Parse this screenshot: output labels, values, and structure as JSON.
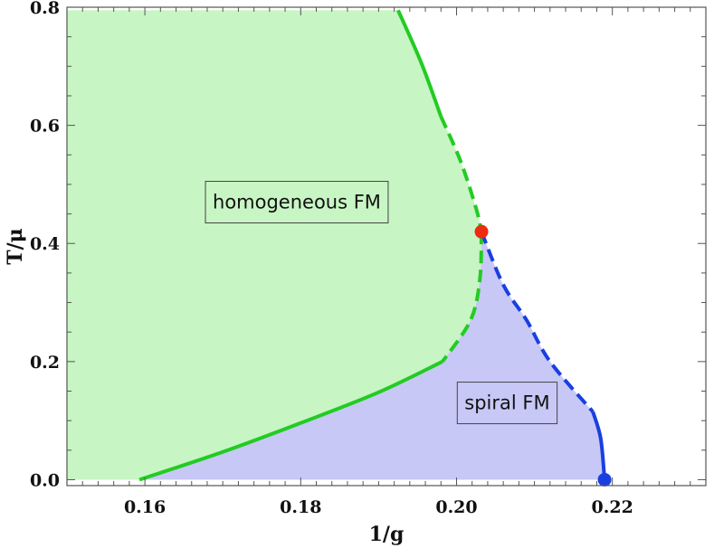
{
  "chart_data": {
    "type": "area",
    "title": "",
    "xlabel": "1/g",
    "ylabel": "T/μ",
    "xlim": [
      0.15,
      0.232
    ],
    "ylim": [
      -0.01,
      0.8
    ],
    "grid": false,
    "x_ticks": [
      {
        "value": 0.16,
        "label": "0.16"
      },
      {
        "value": 0.18,
        "label": "0.18"
      },
      {
        "value": 0.2,
        "label": "0.20"
      },
      {
        "value": 0.22,
        "label": "0.22"
      }
    ],
    "y_ticks": [
      {
        "value": 0.0,
        "label": "0.0"
      },
      {
        "value": 0.2,
        "label": "0.2"
      },
      {
        "value": 0.4,
        "label": "0.4"
      },
      {
        "value": 0.6,
        "label": "0.6"
      },
      {
        "value": 0.8,
        "label": "0.8"
      }
    ],
    "regions": [
      {
        "name": "homogeneous FM",
        "label_at": [
          0.1795,
          0.47
        ],
        "color": "#c8f5c4"
      },
      {
        "name": "spiral FM",
        "label_at": [
          0.2065,
          0.13
        ],
        "color": "#c7c8f6"
      }
    ],
    "series": [
      {
        "key": "green-solid-upper",
        "style": "solid",
        "color": "#22cc22",
        "x": [
          0.1925,
          0.1955,
          0.198
        ],
        "y": [
          0.795,
          0.705,
          0.615
        ]
      },
      {
        "key": "green-dashed-upper",
        "style": "dashed",
        "color": "#22cc22",
        "x": [
          0.198,
          0.2005,
          0.2025,
          0.2032
        ],
        "y": [
          0.615,
          0.54,
          0.46,
          0.42
        ]
      },
      {
        "key": "green-dashed-lower",
        "style": "dashed",
        "color": "#22cc22",
        "x": [
          0.2032,
          0.203,
          0.2018,
          0.1982
        ],
        "y": [
          0.42,
          0.34,
          0.27,
          0.2
        ]
      },
      {
        "key": "green-solid-lower",
        "style": "solid",
        "color": "#22cc22",
        "x": [
          0.1982,
          0.19,
          0.18,
          0.17,
          0.1593
        ],
        "y": [
          0.2,
          0.148,
          0.096,
          0.047,
          0.0
        ]
      },
      {
        "key": "blue-dashed",
        "style": "dashed",
        "color": "#1a3fe0",
        "x": [
          0.2032,
          0.206,
          0.209,
          0.212,
          0.2175
        ],
        "y": [
          0.42,
          0.33,
          0.27,
          0.2,
          0.115
        ]
      },
      {
        "key": "blue-solid",
        "style": "solid",
        "color": "#1a3fe0",
        "x": [
          0.2175,
          0.2185,
          0.219
        ],
        "y": [
          0.115,
          0.07,
          0.0
        ]
      }
    ],
    "points": [
      {
        "key": "red-point",
        "x": 0.2032,
        "y": 0.42,
        "color": "#ee2a10"
      },
      {
        "key": "blue-point",
        "x": 0.219,
        "y": 0.0,
        "color": "#1a3fe0"
      }
    ]
  }
}
